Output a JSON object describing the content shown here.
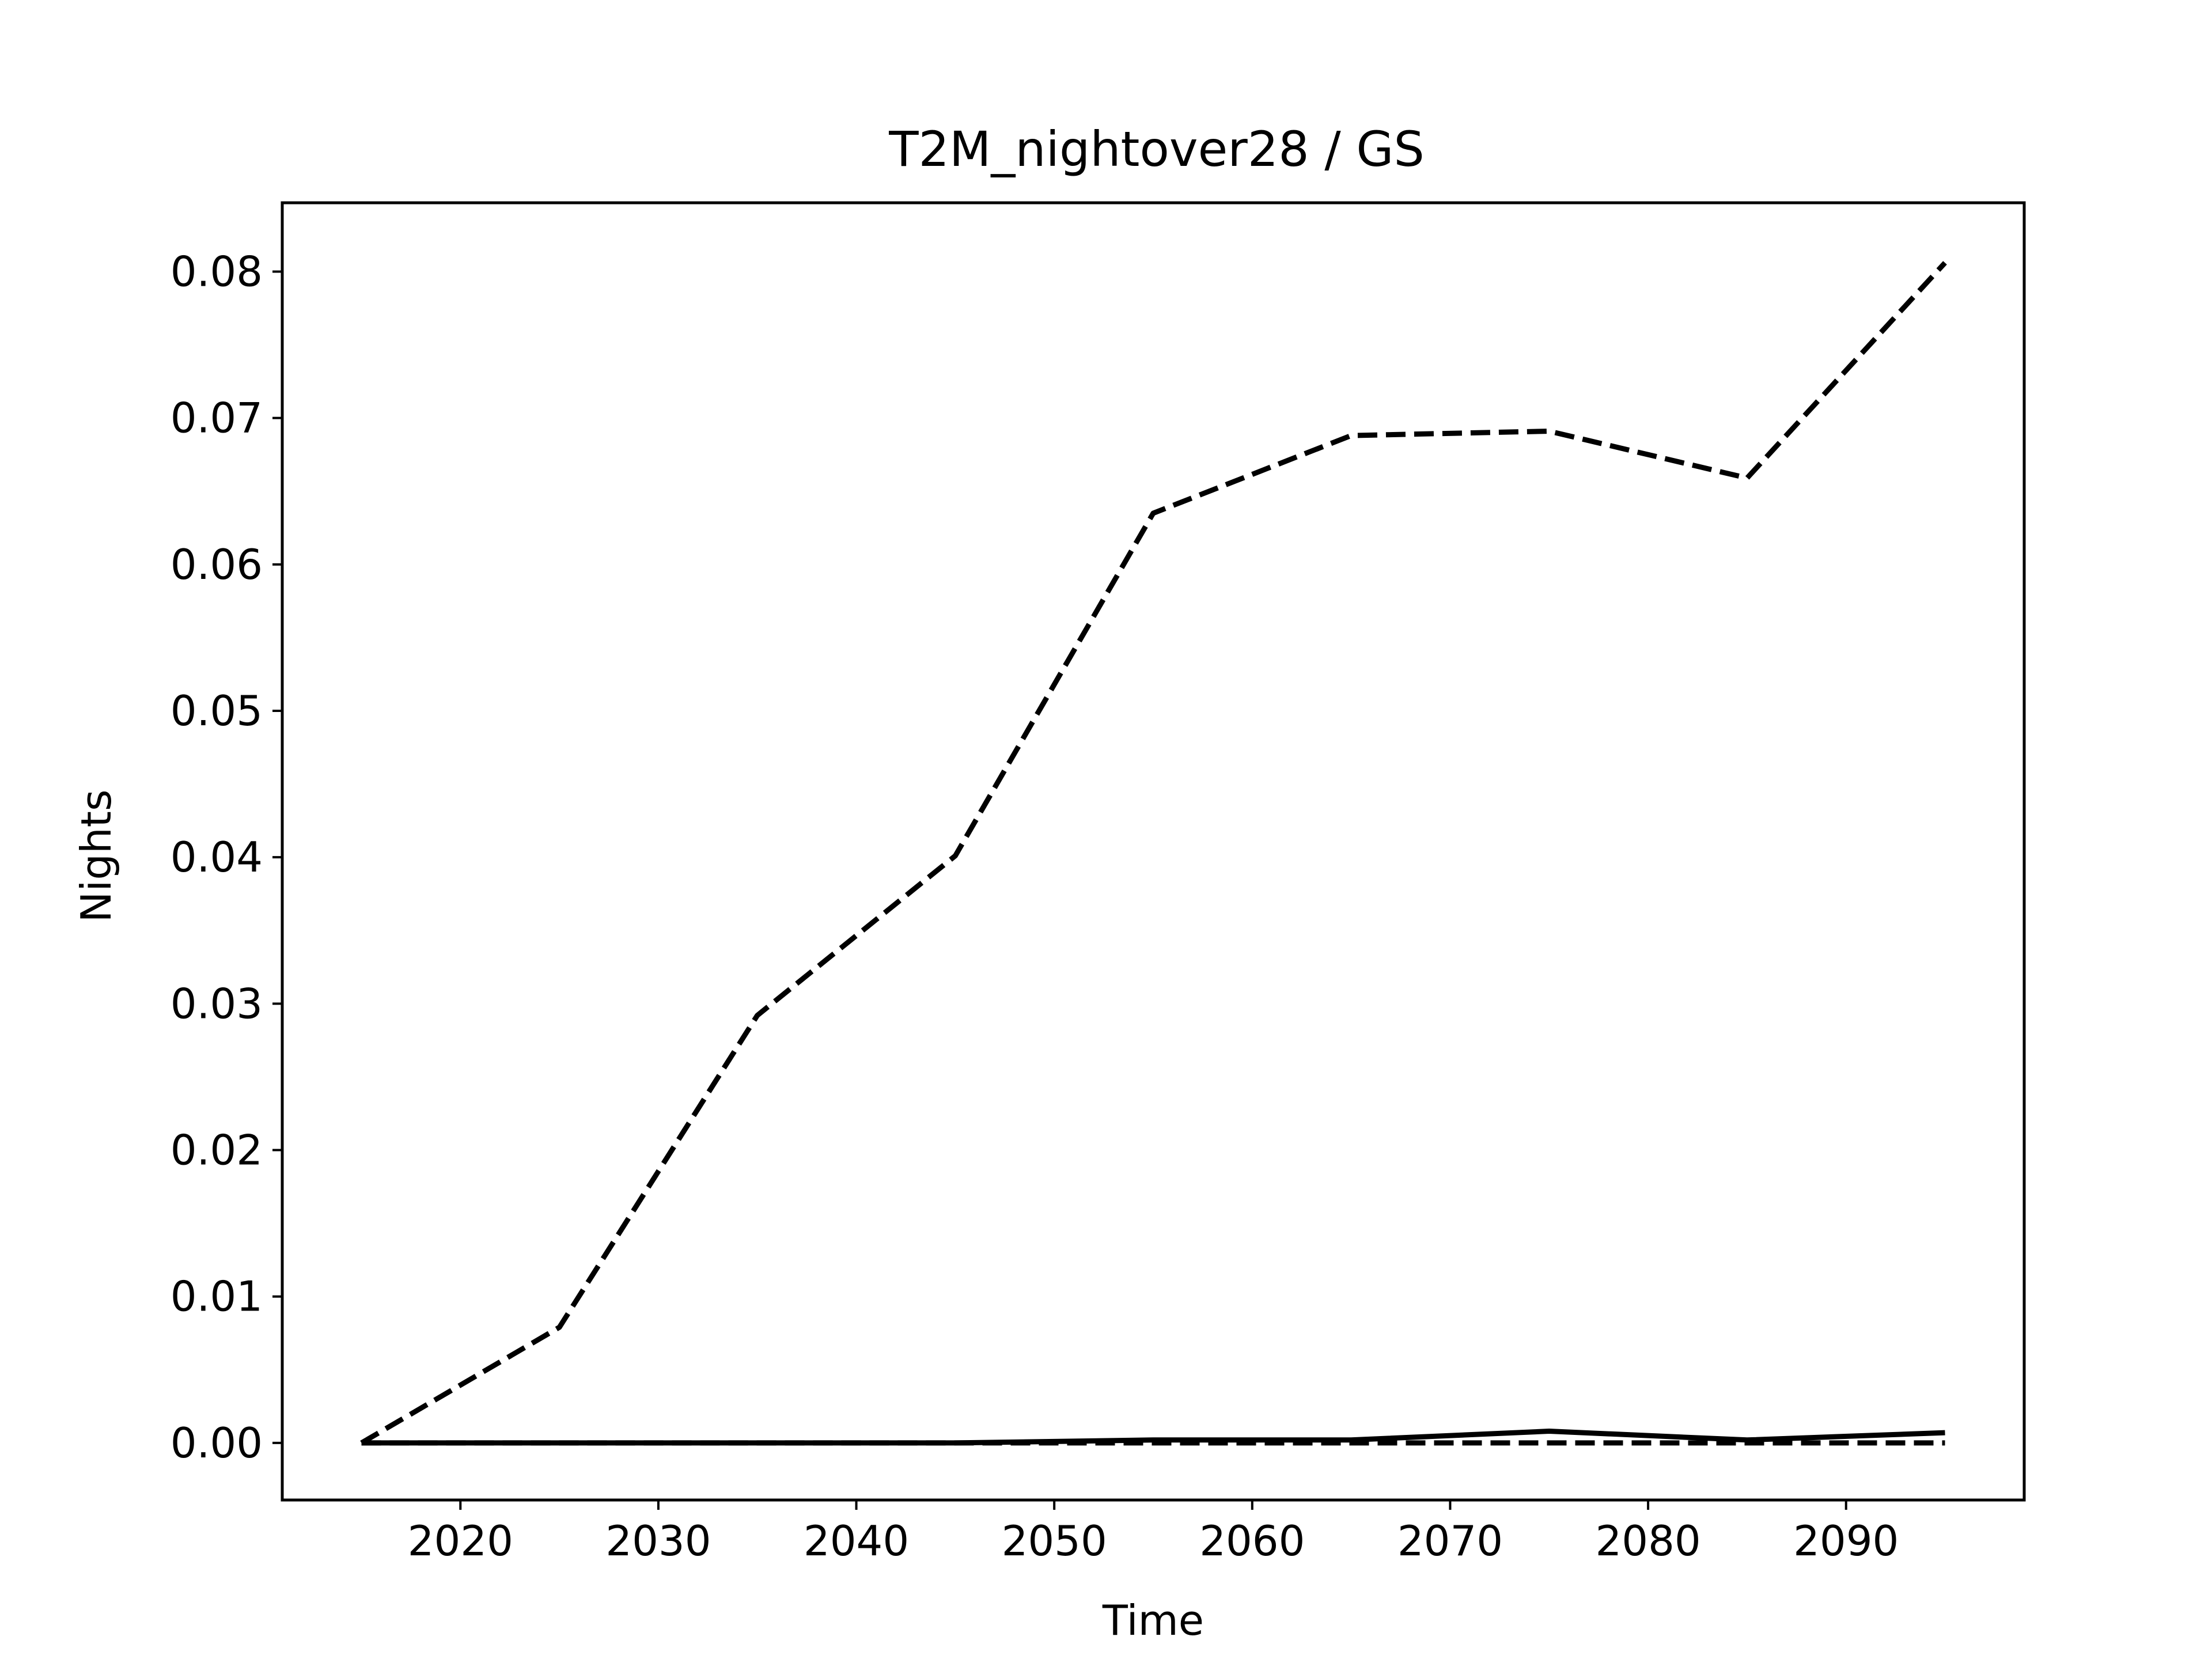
{
  "chart_data": {
    "type": "line",
    "title": "T2M_nightover28 / GS",
    "xlabel": "Time",
    "ylabel": "Nights",
    "xlim": [
      2011,
      2099
    ],
    "ylim": [
      -0.0039,
      0.0847
    ],
    "xticks": [
      2020,
      2030,
      2040,
      2050,
      2060,
      2070,
      2080,
      2090
    ],
    "yticks": [
      0.0,
      0.01,
      0.02,
      0.03,
      0.04,
      0.05,
      0.06,
      0.07,
      0.08
    ],
    "ytick_labels": [
      "0.00",
      "0.01",
      "0.02",
      "0.03",
      "0.04",
      "0.05",
      "0.06",
      "0.07",
      "0.08"
    ],
    "grid": false,
    "line_color": "#000000",
    "x": [
      2015,
      2025,
      2035,
      2045,
      2055,
      2065,
      2075,
      2085,
      2095
    ],
    "series": [
      {
        "style": "dashed",
        "values": [
          0.0,
          0.0079,
          0.0292,
          0.0401,
          0.0635,
          0.0688,
          0.0691,
          0.0659,
          0.0806
        ]
      },
      {
        "style": "solid",
        "values": [
          0.0,
          0.0,
          0.0,
          0.0,
          0.0002,
          0.0002,
          0.0008,
          0.0002,
          0.0007
        ]
      },
      {
        "style": "dashed",
        "values": [
          0.0,
          0.0,
          0.0,
          0.0,
          0.0,
          0.0,
          0.0,
          0.0,
          0.0
        ]
      }
    ]
  }
}
